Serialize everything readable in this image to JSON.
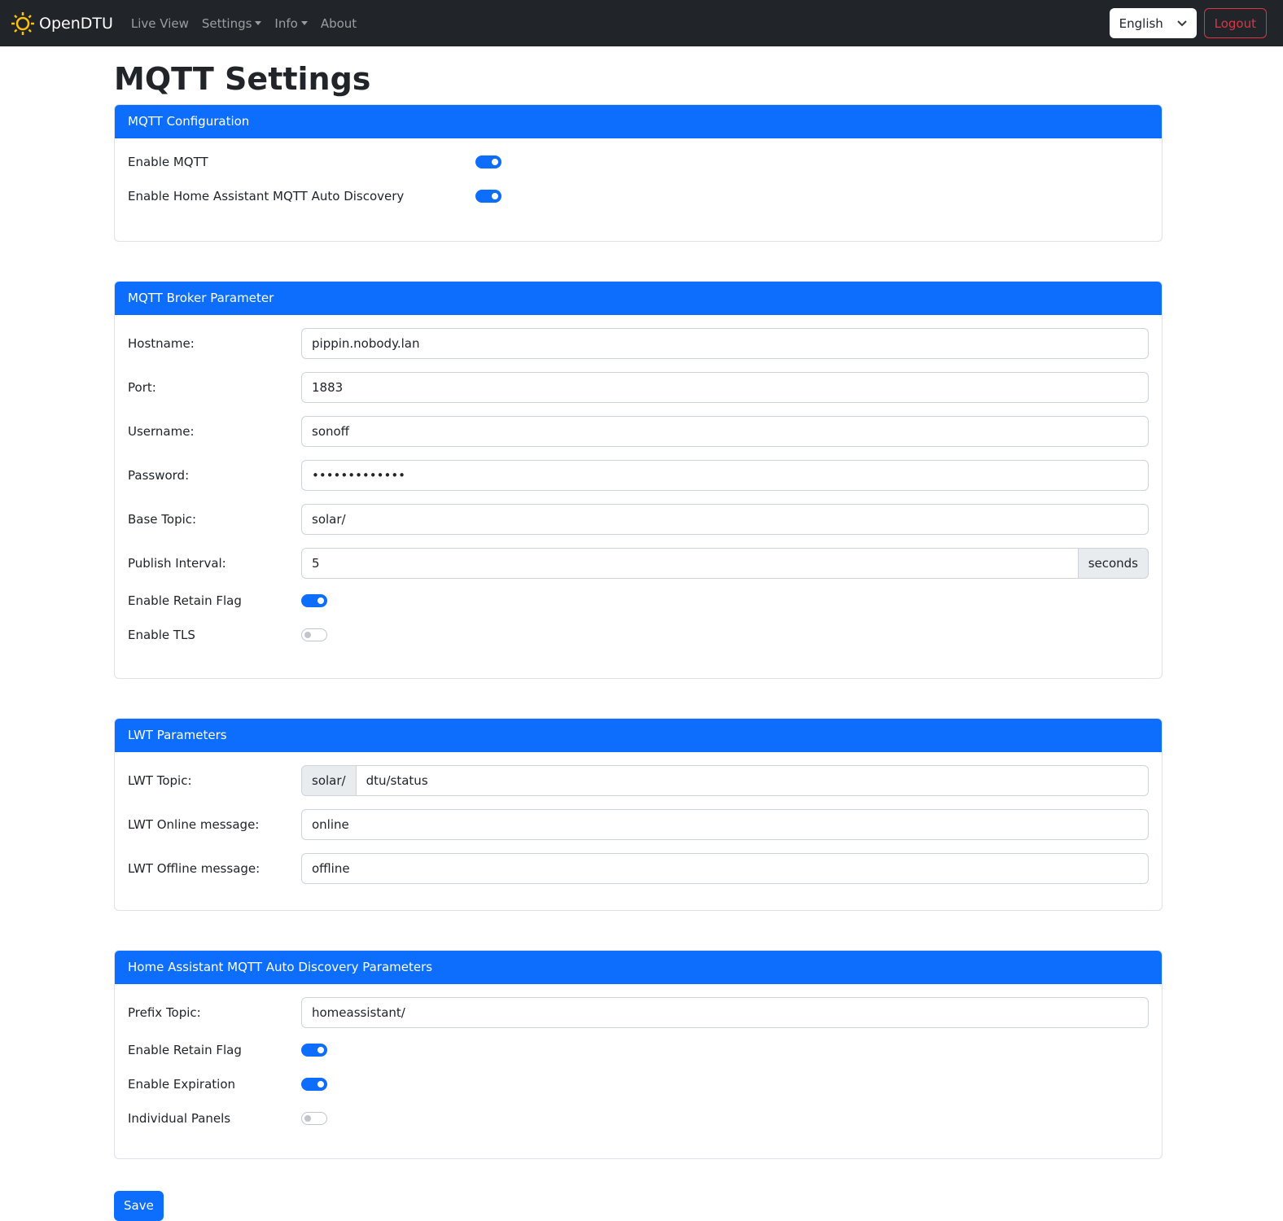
{
  "nav": {
    "brand": "OpenDTU",
    "items": [
      "Live View",
      "Settings",
      "Info",
      "About"
    ],
    "language": "English",
    "logout": "Logout"
  },
  "page_title": "MQTT Settings",
  "config": {
    "title": "MQTT Configuration",
    "enable_mqtt": {
      "label": "Enable MQTT",
      "on": true
    },
    "enable_ha": {
      "label": "Enable Home Assistant MQTT Auto Discovery",
      "on": true
    }
  },
  "broker": {
    "title": "MQTT Broker Parameter",
    "hostname": {
      "label": "Hostname:",
      "value": "pippin.nobody.lan"
    },
    "port": {
      "label": "Port:",
      "value": "1883"
    },
    "username": {
      "label": "Username:",
      "value": "sonoff"
    },
    "password": {
      "label": "Password:",
      "value": "•••••••••••••"
    },
    "base_topic": {
      "label": "Base Topic:",
      "value": "solar/"
    },
    "publish_interval": {
      "label": "Publish Interval:",
      "value": "5",
      "unit": "seconds"
    },
    "retain": {
      "label": "Enable Retain Flag",
      "on": true
    },
    "tls": {
      "label": "Enable TLS",
      "on": false
    }
  },
  "lwt": {
    "title": "LWT Parameters",
    "topic": {
      "label": "LWT Topic:",
      "prefix": "solar/",
      "value": "dtu/status"
    },
    "online": {
      "label": "LWT Online message:",
      "value": "online"
    },
    "offline": {
      "label": "LWT Offline message:",
      "value": "offline"
    }
  },
  "ha": {
    "title": "Home Assistant MQTT Auto Discovery Parameters",
    "prefix": {
      "label": "Prefix Topic:",
      "value": "homeassistant/"
    },
    "retain": {
      "label": "Enable Retain Flag",
      "on": true
    },
    "expiration": {
      "label": "Enable Expiration",
      "on": true
    },
    "panels": {
      "label": "Individual Panels",
      "on": false
    }
  },
  "save": "Save",
  "colors": {
    "primary": "#0d6efd",
    "navbar": "#212529",
    "danger": "#dc3545",
    "brand_icon": "#ffc107"
  }
}
